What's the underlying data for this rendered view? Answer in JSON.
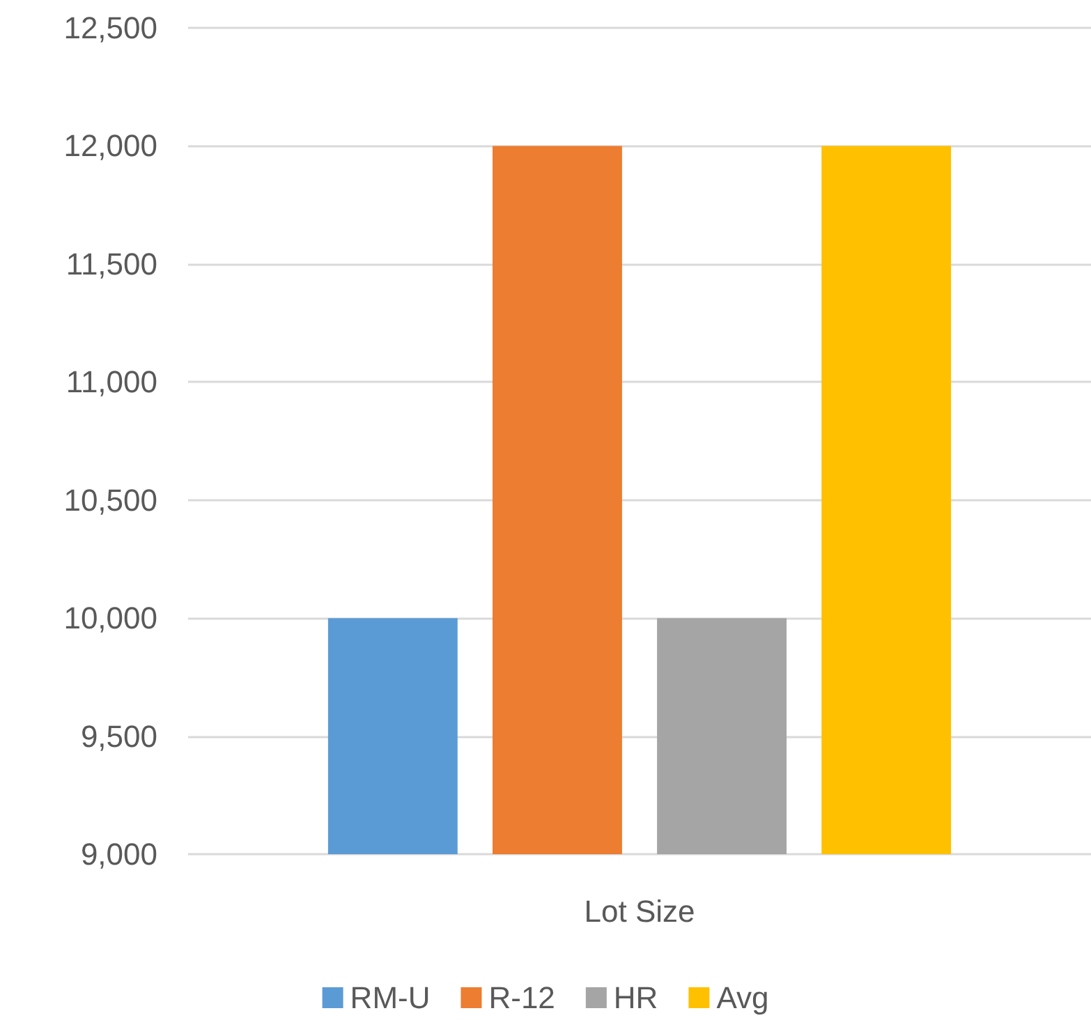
{
  "chart_data": {
    "type": "bar",
    "categories": [
      "Lot Size"
    ],
    "series": [
      {
        "name": "RM-U",
        "color": "#5b9bd5",
        "values": [
          10000
        ]
      },
      {
        "name": "R-12",
        "color": "#ed7d31",
        "values": [
          12000
        ]
      },
      {
        "name": "HR",
        "color": "#a5a5a5",
        "values": [
          10000
        ]
      },
      {
        "name": "Avg",
        "color": "#ffc000",
        "values": [
          12000
        ]
      }
    ],
    "ylim": [
      9000,
      12500
    ],
    "yticks": [
      {
        "value": 9000,
        "label": "9,000"
      },
      {
        "value": 9500,
        "label": "9,500"
      },
      {
        "value": 10000,
        "label": "10,000"
      },
      {
        "value": 10500,
        "label": "10,500"
      },
      {
        "value": 11000,
        "label": "11,000"
      },
      {
        "value": 11500,
        "label": "11,500"
      },
      {
        "value": 12000,
        "label": "12,000"
      },
      {
        "value": 12500,
        "label": "12,500"
      }
    ],
    "grid": "y",
    "legend": "bottom"
  }
}
